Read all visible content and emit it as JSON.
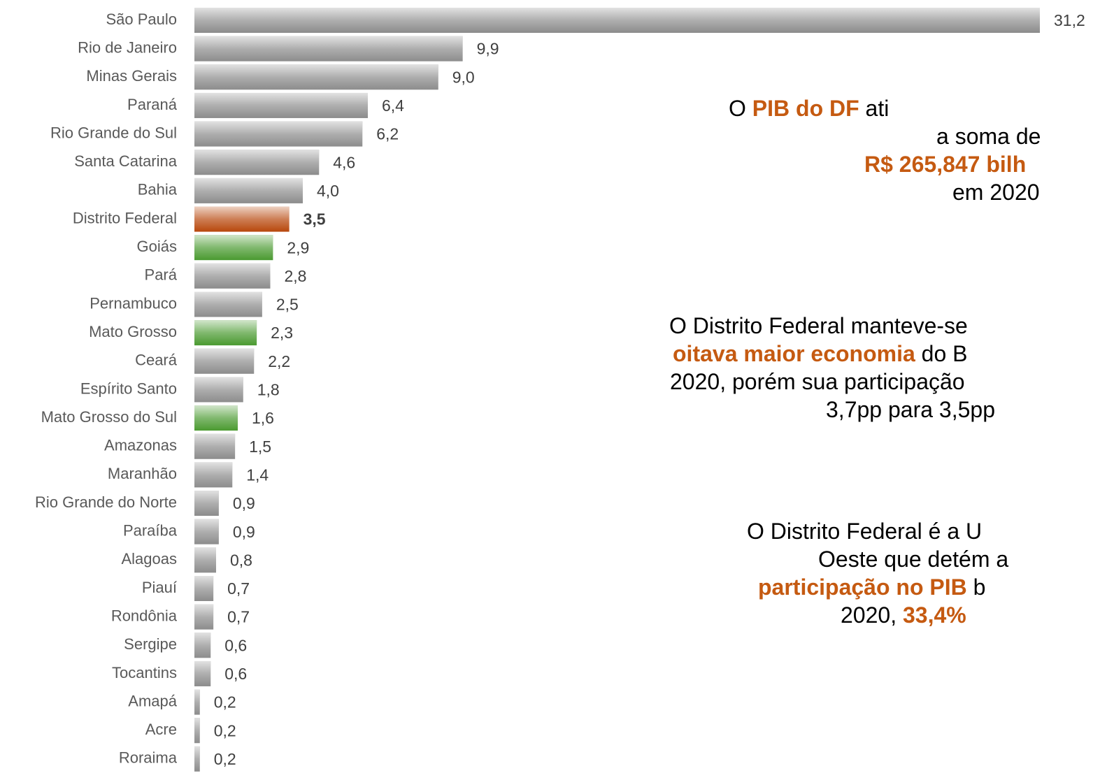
{
  "chart_data": {
    "type": "barh",
    "categories": [
      "São Paulo",
      "Rio de Janeiro",
      "Minas Gerais",
      "Paraná",
      "Rio Grande do Sul",
      "Santa Catarina",
      "Bahia",
      "Distrito Federal",
      "Goiás",
      "Pará",
      "Pernambuco",
      "Mato Grosso",
      "Ceará",
      "Espírito Santo",
      "Mato Grosso do Sul",
      "Amazonas",
      "Maranhão",
      "Rio Grande do Norte",
      "Paraíba",
      "Alagoas",
      "Piauí",
      "Rondônia",
      "Sergipe",
      "Tocantins",
      "Amapá",
      "Acre",
      "Roraima"
    ],
    "values": [
      31.2,
      9.9,
      9.0,
      6.4,
      6.2,
      4.6,
      4.0,
      3.5,
      2.9,
      2.8,
      2.5,
      2.3,
      2.2,
      1.8,
      1.6,
      1.5,
      1.4,
      0.9,
      0.9,
      0.8,
      0.7,
      0.7,
      0.6,
      0.6,
      0.2,
      0.2,
      0.2
    ],
    "value_labels": [
      "31,2",
      "9,9",
      "9,0",
      "6,4",
      "6,2",
      "4,6",
      "4,0",
      "3,5",
      "2,9",
      "2,8",
      "2,5",
      "2,3",
      "2,2",
      "1,8",
      "1,6",
      "1,5",
      "1,4",
      "0,9",
      "0,9",
      "0,8",
      "0,7",
      "0,7",
      "0,6",
      "0,6",
      "0,2",
      "0,2",
      "0,2"
    ],
    "colors": [
      "#8c8c8c",
      "#8c8c8c",
      "#8c8c8c",
      "#8c8c8c",
      "#8c8c8c",
      "#8c8c8c",
      "#8c8c8c",
      "#b8470c",
      "#4a9a30",
      "#8c8c8c",
      "#8c8c8c",
      "#4a9a30",
      "#8c8c8c",
      "#8c8c8c",
      "#4a9a30",
      "#8c8c8c",
      "#8c8c8c",
      "#8c8c8c",
      "#8c8c8c",
      "#8c8c8c",
      "#8c8c8c",
      "#8c8c8c",
      "#8c8c8c",
      "#8c8c8c",
      "#8c8c8c",
      "#8c8c8c",
      "#8c8c8c"
    ],
    "highlight_label_color": "#c55a11",
    "highlight_index": 7,
    "annotations": [
      [
        [
          {
            "text": "O "
          },
          {
            "text": "PIB do DF",
            "bold": true
          },
          {
            "text": " ati"
          }
        ],
        [
          {
            "text": "a soma de"
          }
        ],
        [
          {
            "text": "R$ 265,847 bilh",
            "bold": true
          }
        ],
        [
          {
            "text": "em 2020"
          }
        ]
      ],
      [
        [
          {
            "text": "O Distrito Federal manteve-se"
          }
        ],
        [
          {
            "text": "oitava maior economia",
            "bold": true
          },
          {
            "text": " do B"
          }
        ],
        [
          {
            "text": "2020, porém sua participação"
          }
        ],
        [
          {
            "text": "3,7pp para 3,5pp"
          }
        ]
      ],
      [
        [
          {
            "text": "O Distrito Federal é a U"
          }
        ],
        [
          {
            "text": "Oeste que detém a"
          }
        ],
        [
          {
            "text": "participação no PIB",
            "bold": true
          },
          {
            "text": " b"
          }
        ],
        [
          {
            "text": "2020, "
          },
          {
            "text": "33,4%",
            "bold": true
          }
        ]
      ]
    ]
  }
}
